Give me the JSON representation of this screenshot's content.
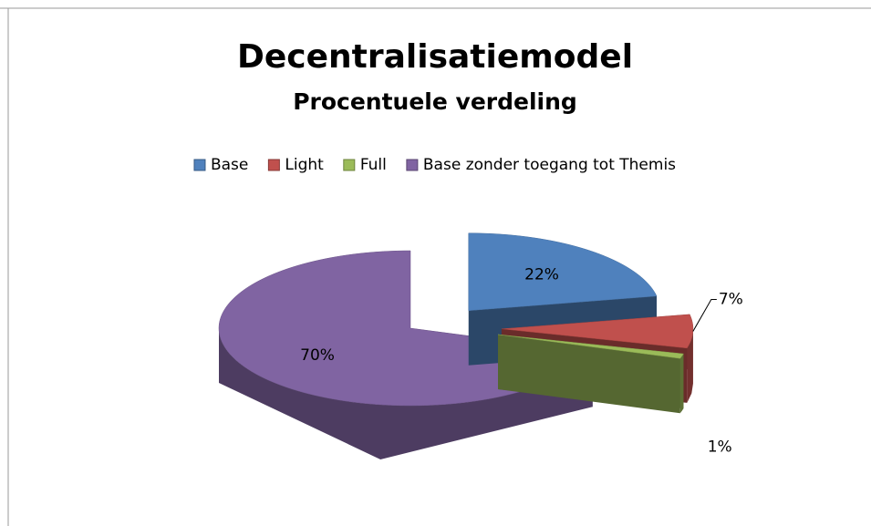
{
  "chart_data": {
    "type": "pie",
    "title": "Decentralisatiemodel",
    "subtitle": "Procentuele verdeling",
    "categories": [
      "Base",
      "Light",
      "Full",
      "Base zonder toegang tot Themis"
    ],
    "values": [
      22,
      7,
      1,
      70
    ],
    "value_labels": [
      "22%",
      "7%",
      "1%",
      "70%"
    ],
    "colors": [
      "#4f81bd",
      "#c0504d",
      "#9bbb59",
      "#8064a2"
    ],
    "legend": "top"
  }
}
